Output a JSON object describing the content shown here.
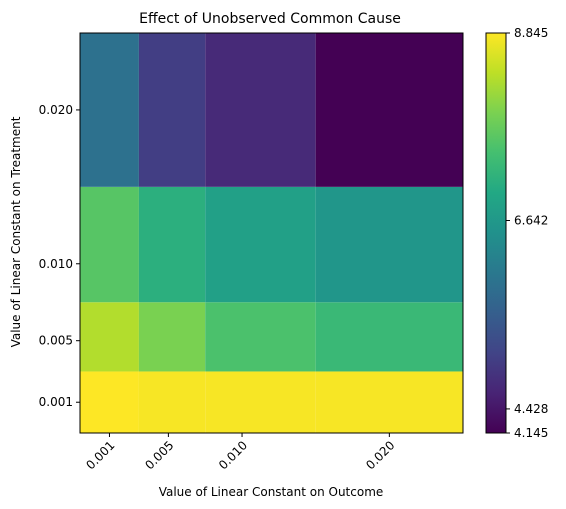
{
  "chart_data": {
    "type": "heatmap",
    "title": "Effect of Unobserved Common Cause",
    "xlabel": "Value of Linear Constant on Outcome",
    "ylabel": "Value of Linear Constant on Treatment",
    "x_values": [
      0.001,
      0.005,
      0.01,
      0.02
    ],
    "x_tick_labels": [
      "0.001",
      "0.005",
      "0.010",
      "0.020"
    ],
    "y_values": [
      0.001,
      0.005,
      0.01,
      0.02
    ],
    "y_tick_labels": [
      "0.001",
      "0.005",
      "0.010",
      "0.020"
    ],
    "z_rows_by_y": [
      [
        8.845,
        8.8,
        8.8,
        8.8
      ],
      [
        8.3,
        7.9,
        7.5,
        7.3
      ],
      [
        7.6,
        7.1,
        6.8,
        6.6
      ],
      [
        5.9,
        5.0,
        4.7,
        4.15
      ]
    ],
    "colorbar": {
      "min": 4.145,
      "max": 8.845,
      "tick_values": [
        4.145,
        4.428,
        6.642,
        8.845
      ],
      "tick_labels": [
        "4.145",
        "4.428",
        "6.642",
        "8.845"
      ],
      "colormap": "viridis"
    },
    "grid": false
  }
}
